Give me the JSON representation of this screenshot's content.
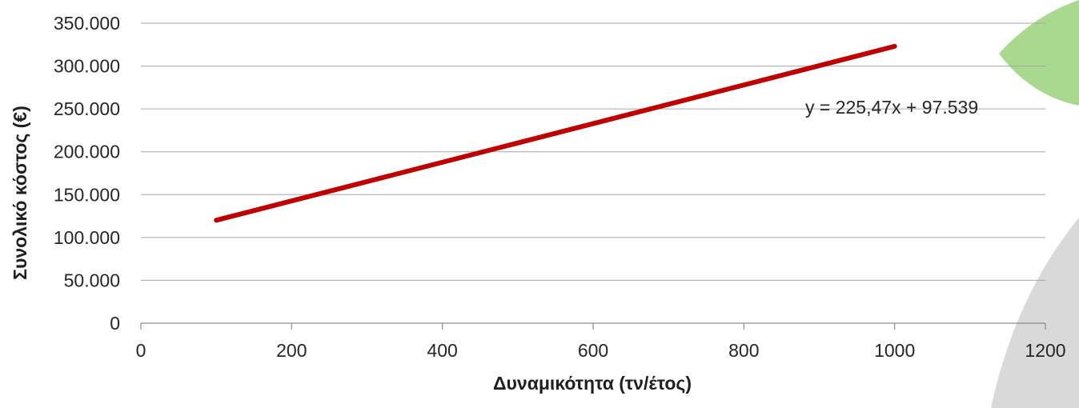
{
  "chart_data": {
    "type": "line",
    "xlabel": "Δυναμικότητα (τν/έτος)",
    "ylabel": "Συνολικό κόστος (€)",
    "xlim": [
      0,
      1200
    ],
    "ylim": [
      0,
      350000
    ],
    "xticks": [
      0,
      200,
      400,
      600,
      800,
      1000,
      1200
    ],
    "xtick_labels": [
      "0",
      "200",
      "400",
      "600",
      "800",
      "1000",
      "1200"
    ],
    "yticks": [
      0,
      50000,
      100000,
      150000,
      200000,
      250000,
      300000,
      350000
    ],
    "ytick_labels": [
      "0",
      "50.000",
      "100.000",
      "150.000",
      "200.000",
      "250.000",
      "300.000",
      "350.000"
    ],
    "grid": true,
    "series": [
      {
        "x": [
          100,
          1000
        ],
        "y": [
          120086,
          323009
        ],
        "color": "#c00000"
      }
    ],
    "annotation": "y = 225,47x + 97.539"
  },
  "decor": {
    "green": "#a9d88f",
    "gray": "#d9d9d9"
  }
}
